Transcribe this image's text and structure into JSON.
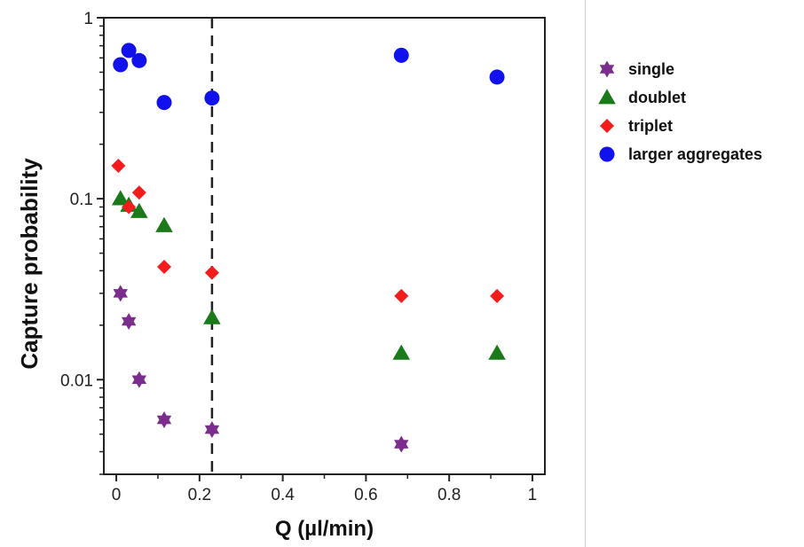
{
  "chart_data": {
    "type": "scatter",
    "xlabel": "Q (µl/min)",
    "ylabel": "Capture probability",
    "xlim": [
      -0.03,
      1.03
    ],
    "ylim": [
      0.003,
      1
    ],
    "yscale": "log",
    "x_ticks": [
      0,
      0.2,
      0.4,
      0.6,
      0.8,
      1
    ],
    "x_tick_labels": [
      "0",
      "0.2",
      "0.4",
      "0.6",
      "0.8",
      "1"
    ],
    "y_ticks": [
      0.01,
      0.1,
      1
    ],
    "y_tick_labels": [
      "0.01",
      "0.1",
      "1"
    ],
    "grid": false,
    "legend_position": "right",
    "reference_line": {
      "x": 0.23,
      "style": "dashed"
    },
    "series": [
      {
        "name": "single",
        "marker": "star6",
        "color": "#7b2d8e",
        "points": [
          [
            0.01,
            0.03
          ],
          [
            0.03,
            0.021
          ],
          [
            0.055,
            0.01
          ],
          [
            0.115,
            0.006
          ],
          [
            0.23,
            0.0053
          ],
          [
            0.685,
            0.0044
          ]
        ]
      },
      {
        "name": "doublet",
        "marker": "triangle",
        "color": "#1a7a1a",
        "points": [
          [
            0.01,
            0.1
          ],
          [
            0.03,
            0.092
          ],
          [
            0.055,
            0.085
          ],
          [
            0.115,
            0.071
          ],
          [
            0.23,
            0.022
          ],
          [
            0.685,
            0.014
          ],
          [
            0.915,
            0.014
          ]
        ]
      },
      {
        "name": "triplet",
        "marker": "diamond",
        "color": "#f21c1c",
        "points": [
          [
            0.005,
            0.152
          ],
          [
            0.03,
            0.09
          ],
          [
            0.055,
            0.108
          ],
          [
            0.115,
            0.042
          ],
          [
            0.23,
            0.039
          ],
          [
            0.685,
            0.029
          ],
          [
            0.915,
            0.029
          ]
        ]
      },
      {
        "name": "larger aggregates",
        "marker": "circle",
        "color": "#1111ee",
        "points": [
          [
            0.01,
            0.55
          ],
          [
            0.03,
            0.66
          ],
          [
            0.055,
            0.58
          ],
          [
            0.115,
            0.34
          ],
          [
            0.23,
            0.36
          ],
          [
            0.685,
            0.62
          ],
          [
            0.915,
            0.47
          ]
        ]
      }
    ]
  }
}
